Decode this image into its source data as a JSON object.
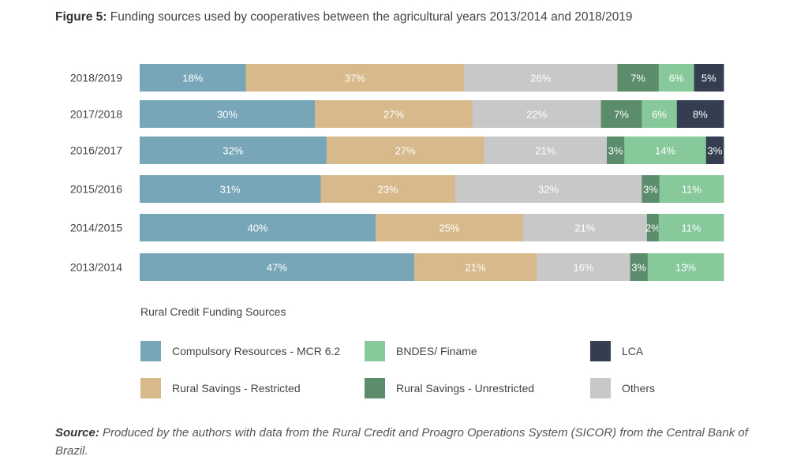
{
  "title": {
    "label": "Figure 5:",
    "text": "Funding sources used by cooperatives between the agricultural years 2013/2014 and 2018/2019"
  },
  "chart_data": {
    "type": "bar",
    "orientation": "horizontal",
    "stacked": true,
    "categories": [
      "2018/2019",
      "2017/2018",
      "2016/2017",
      "2015/2016",
      "2014/2015",
      "2013/2014"
    ],
    "series": [
      {
        "name": "Compulsory Resources - MCR 6.2",
        "color": "#78a6b9",
        "values": [
          18,
          30,
          32,
          31,
          40,
          47
        ]
      },
      {
        "name": "Rural Savings - Restricted",
        "color": "#d8b98b",
        "values": [
          37,
          27,
          27,
          23,
          25,
          21
        ]
      },
      {
        "name": "Others",
        "color": "#c8c8c8",
        "values": [
          26,
          22,
          21,
          32,
          21,
          16
        ]
      },
      {
        "name": "Rural Savings - Unrestricted",
        "color": "#5b8d6c",
        "values": [
          7,
          7,
          3,
          3,
          2,
          3
        ]
      },
      {
        "name": "BNDES/ Finame",
        "color": "#88c99b",
        "values": [
          6,
          6,
          14,
          11,
          11,
          13
        ]
      },
      {
        "name": "LCA",
        "color": "#333e50",
        "values": [
          5,
          8,
          3,
          0,
          0,
          0
        ]
      }
    ],
    "value_suffix": "%",
    "grid": false,
    "legend_title": "Rural Credit Funding Sources",
    "legend_position": "bottom"
  },
  "legend_order": [
    0,
    4,
    5,
    1,
    3,
    2
  ],
  "source": {
    "label": "Source:",
    "text": "Produced by the authors with data from the Rural Credit and Proagro Operations System (SICOR) from the Central Bank of Brazil."
  }
}
